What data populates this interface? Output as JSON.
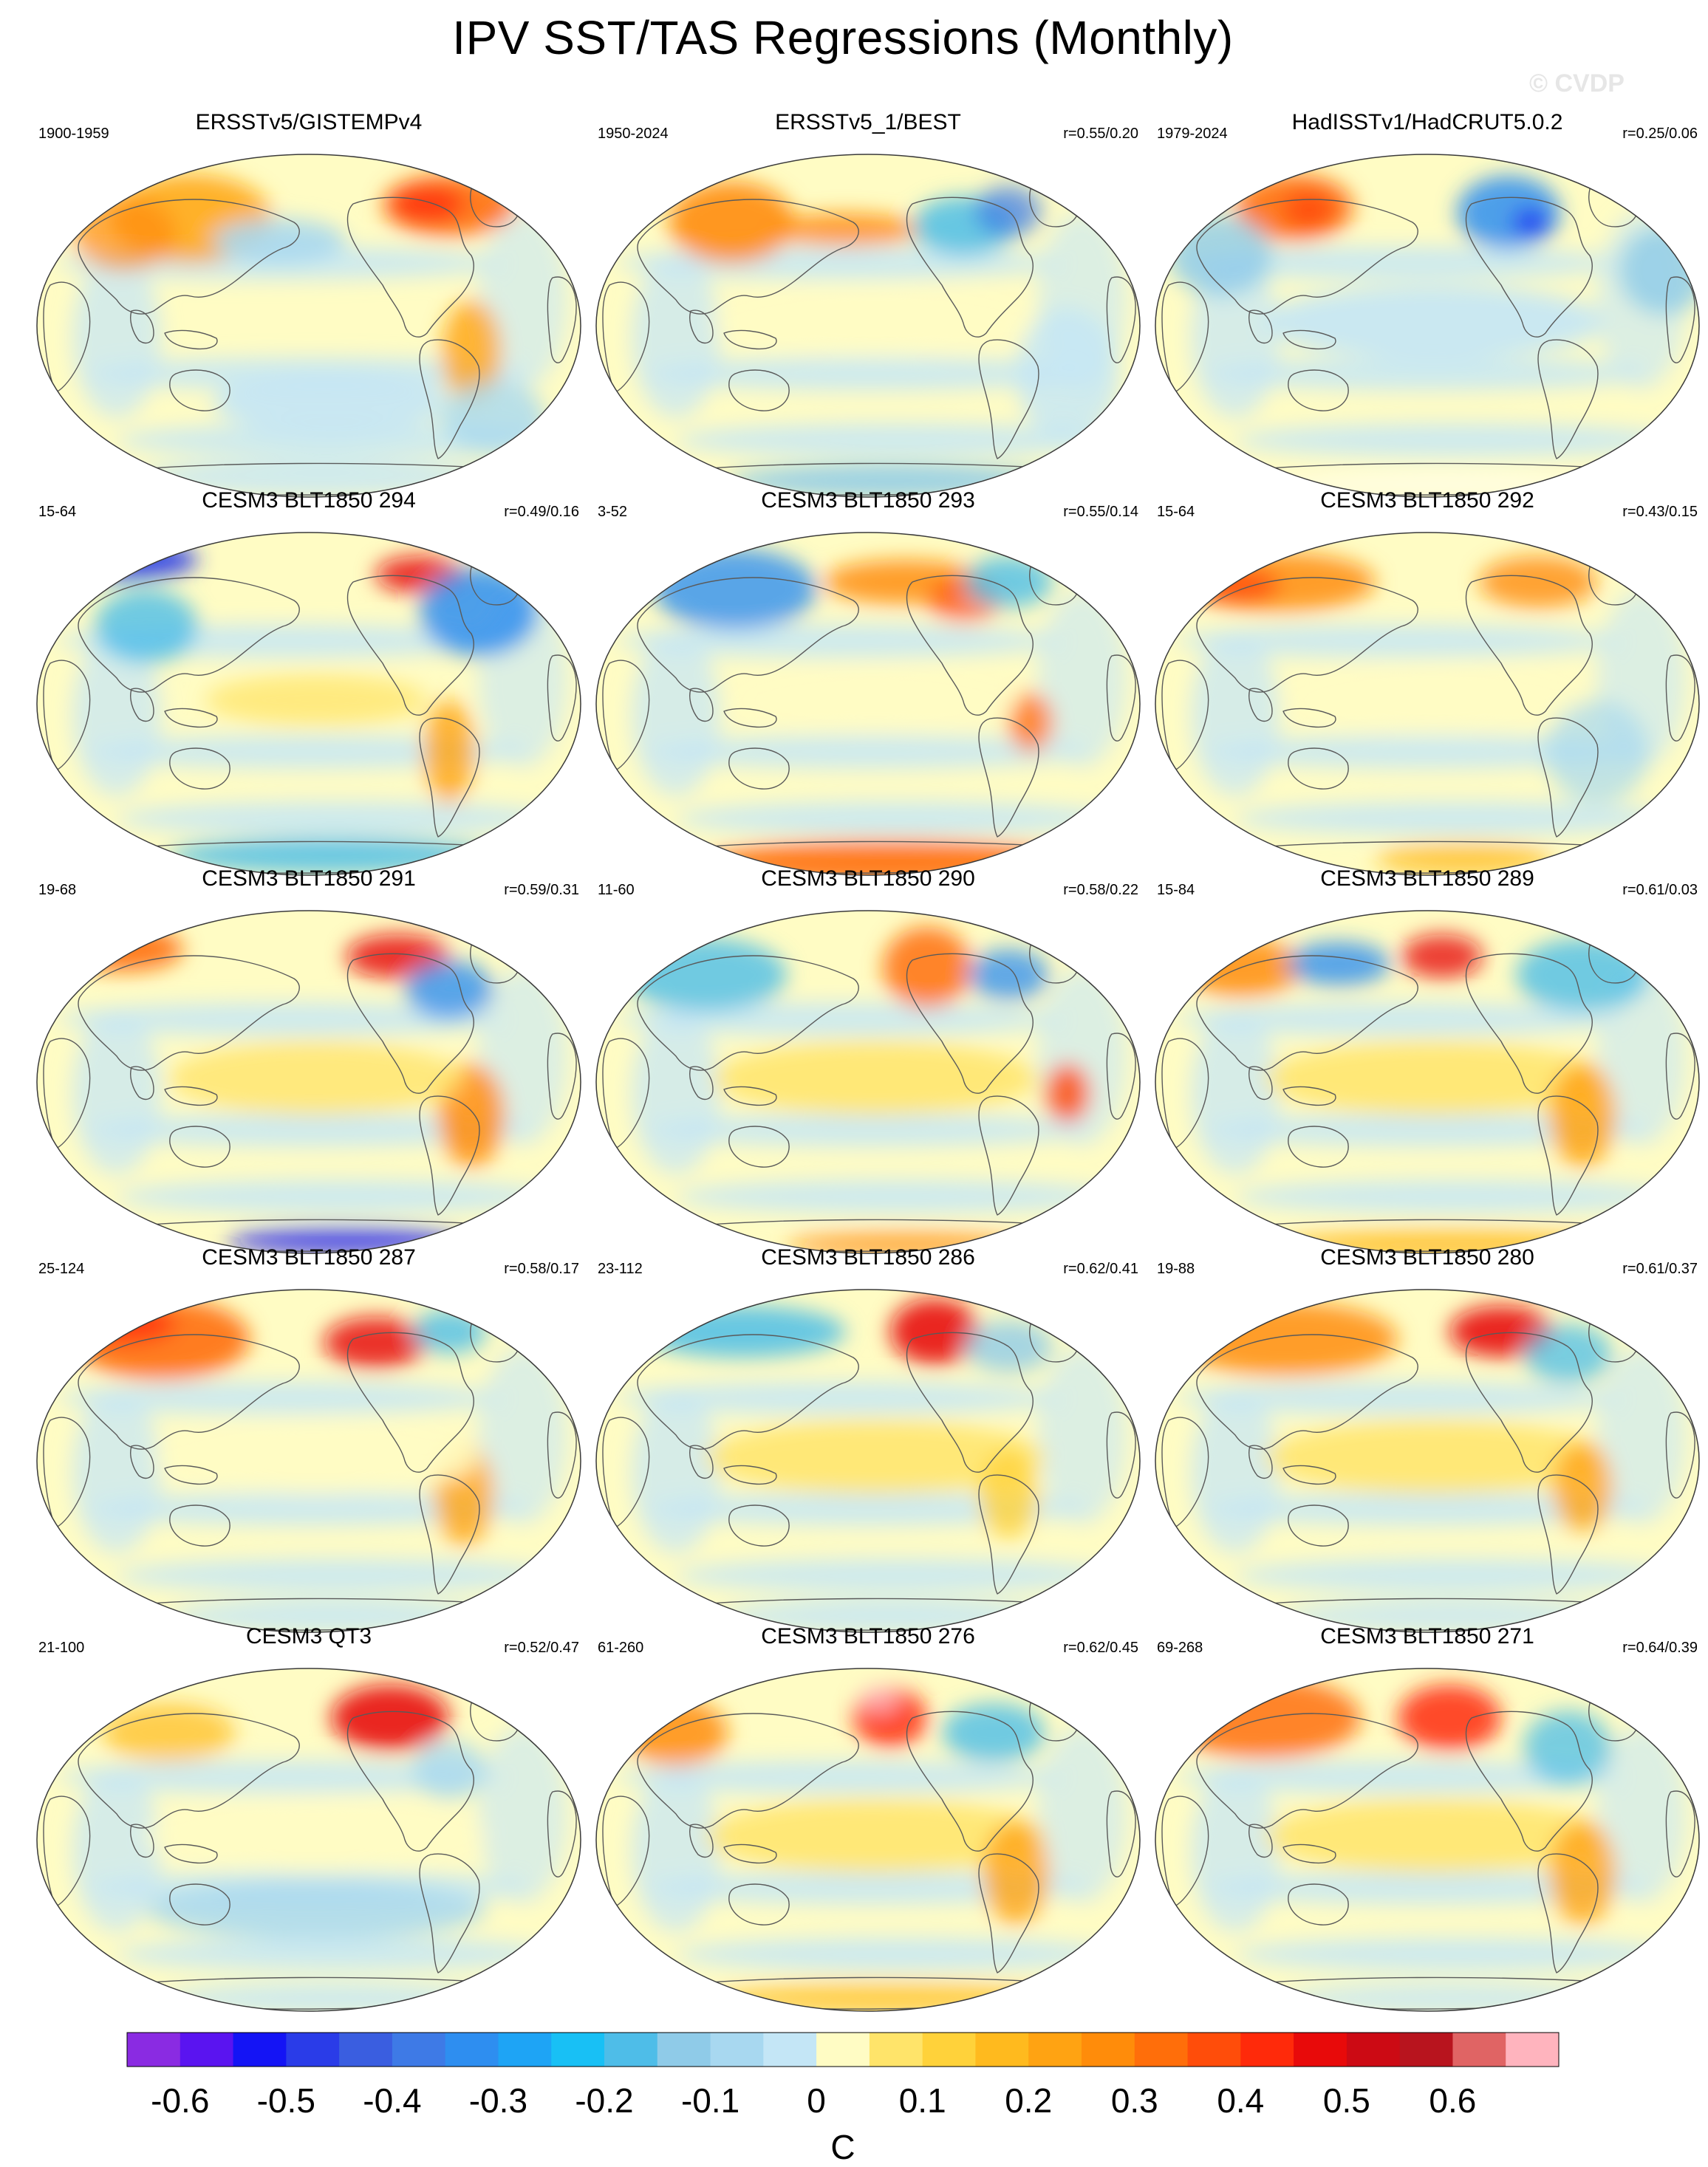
{
  "title": "IPV SST/TAS Regressions (Monthly)",
  "watermark": "© CVDP",
  "colors": {
    "land_outline": "#5a5a5a",
    "map_border": "#3a3a3a"
  },
  "chart_data": {
    "type": "heatmap",
    "projection": "Robinson (Pacific-centered)",
    "panels": [
      {
        "title": "ERSSTv5/GISTEMPv4",
        "period": "1900-1959",
        "stats": "",
        "pattern": "obs1"
      },
      {
        "title": "ERSSTv5_1/BEST",
        "period": "1950-2024",
        "stats": "r=0.55/0.20",
        "pattern": "obs2"
      },
      {
        "title": "HadISSTv1/HadCRUT5.0.2",
        "period": "1979-2024",
        "stats": "r=0.25/0.06",
        "pattern": "obs3"
      },
      {
        "title": "CESM3 BLT1850 294",
        "period": "15-64",
        "stats": "r=0.49/0.16",
        "pattern": "m294"
      },
      {
        "title": "CESM3 BLT1850 293",
        "period": "3-52",
        "stats": "r=0.55/0.14",
        "pattern": "m293"
      },
      {
        "title": "CESM3 BLT1850 292",
        "period": "15-64",
        "stats": "r=0.43/0.15",
        "pattern": "m292"
      },
      {
        "title": "CESM3 BLT1850 291",
        "period": "19-68",
        "stats": "r=0.59/0.31",
        "pattern": "m291"
      },
      {
        "title": "CESM3 BLT1850 290",
        "period": "11-60",
        "stats": "r=0.58/0.22",
        "pattern": "m290"
      },
      {
        "title": "CESM3 BLT1850 289",
        "period": "15-84",
        "stats": "r=0.61/0.03",
        "pattern": "m289"
      },
      {
        "title": "CESM3 BLT1850 287",
        "period": "25-124",
        "stats": "r=0.58/0.17",
        "pattern": "m287"
      },
      {
        "title": "CESM3 BLT1850 286",
        "period": "23-112",
        "stats": "r=0.62/0.41",
        "pattern": "m286"
      },
      {
        "title": "CESM3 BLT1850 280",
        "period": "19-88",
        "stats": "r=0.61/0.37",
        "pattern": "m280"
      },
      {
        "title": "CESM3 QT3",
        "period": "21-100",
        "stats": "r=0.52/0.47",
        "pattern": "qt3"
      },
      {
        "title": "CESM3 BLT1850 276",
        "period": "61-260",
        "stats": "r=0.62/0.45",
        "pattern": "m276"
      },
      {
        "title": "CESM3 BLT1850 271",
        "period": "69-268",
        "stats": "r=0.64/0.39",
        "pattern": "m271"
      }
    ],
    "colorbar": {
      "unit": "C",
      "tick_labels": [
        "-0.6",
        "-0.5",
        "-0.4",
        "-0.3",
        "-0.2",
        "-0.1",
        "0",
        "0.1",
        "0.2",
        "0.3",
        "0.4",
        "0.5",
        "0.6"
      ],
      "tick_values": [
        -0.6,
        -0.5,
        -0.4,
        -0.3,
        -0.2,
        -0.1,
        0,
        0.1,
        0.2,
        0.3,
        0.4,
        0.5,
        0.6
      ],
      "bin_width": 0.05,
      "colors": [
        "#8a2be2",
        "#5a14f0",
        "#1414f5",
        "#2a3ce8",
        "#3a5ee0",
        "#3e7ae6",
        "#2e8ef0",
        "#1ea4f5",
        "#18c0f5",
        "#4ebde8",
        "#8fcbe8",
        "#a8d8f0",
        "#c4e6f6",
        "#fffcc4",
        "#ffe46a",
        "#ffd23a",
        "#ffba1e",
        "#ffa312",
        "#ff8c0a",
        "#ff6e0a",
        "#ff4d0a",
        "#ff2a0a",
        "#e80a0a",
        "#cc0a14",
        "#b8141e",
        "#e06464",
        "#ffb4be"
      ]
    }
  }
}
